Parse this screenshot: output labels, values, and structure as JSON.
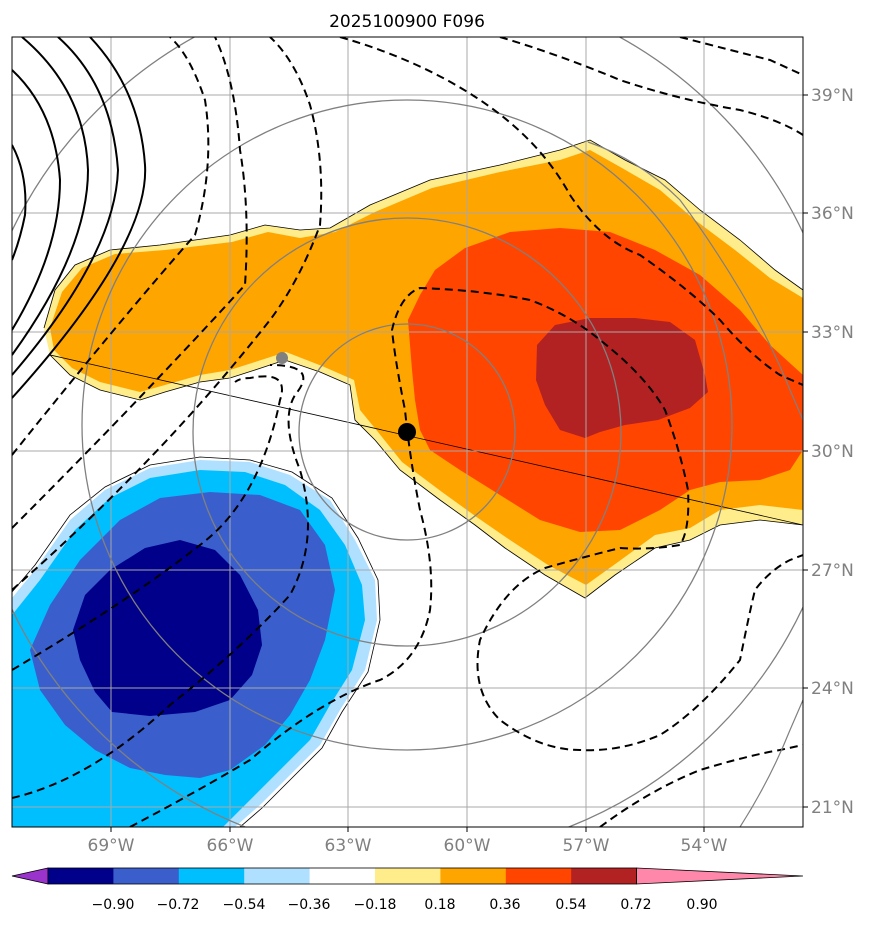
{
  "title": "2025100900 F096",
  "map": {
    "lon_labels": [
      "69°W",
      "66°W",
      "63°W",
      "60°W",
      "57°W",
      "54°W"
    ],
    "lat_labels": [
      "39°N",
      "36°N",
      "33°N",
      "30°N",
      "27°N",
      "24°N",
      "21°N"
    ],
    "label_color": "#808080"
  },
  "colorbar": {
    "ticks": [
      "−0.90",
      "−0.72",
      "−0.54",
      "−0.36",
      "−0.18",
      "0.18",
      "0.36",
      "0.54",
      "0.72",
      "0.90"
    ],
    "colors": [
      "#9933cc",
      "#00008b",
      "#3a5fcd",
      "#00bfff",
      "#b0e0ff",
      "#ffffff",
      "#ffec8b",
      "#ffa500",
      "#ff4500",
      "#b22222",
      "#ff88aa"
    ]
  },
  "markers": {
    "center_color": "#000000",
    "previous_color": "#808080"
  }
}
